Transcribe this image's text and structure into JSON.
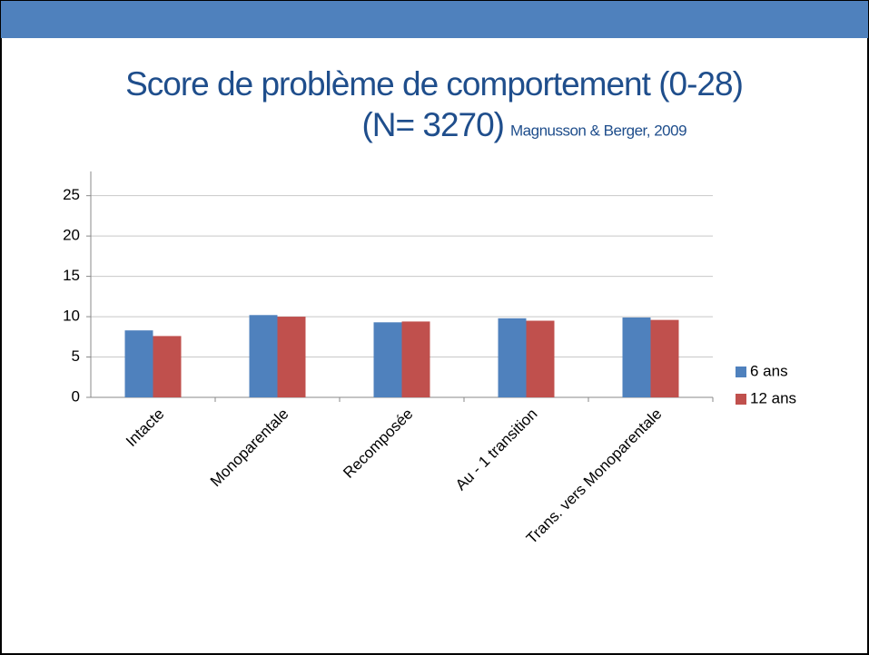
{
  "chart_data": {
    "type": "bar",
    "title": "Score de problème de comportement (0-28)",
    "subtitle": "(N= 3270)",
    "annotation": "Magnusson & Berger, 2009",
    "categories": [
      "Intacte",
      "Monoparentale",
      "Recomposée",
      "Au - 1 transition",
      "Trans. vers Monoparentale"
    ],
    "series": [
      {
        "name": "6 ans",
        "color": "#4f81bd",
        "values": [
          8.3,
          10.2,
          9.3,
          9.8,
          9.9
        ]
      },
      {
        "name": "12 ans",
        "color": "#c0504d",
        "values": [
          7.6,
          10.0,
          9.4,
          9.5,
          9.6
        ]
      }
    ],
    "ylim": [
      0,
      28
    ],
    "yticks": [
      0,
      5,
      10,
      15,
      20,
      25
    ],
    "grid": true,
    "legend": "right"
  }
}
